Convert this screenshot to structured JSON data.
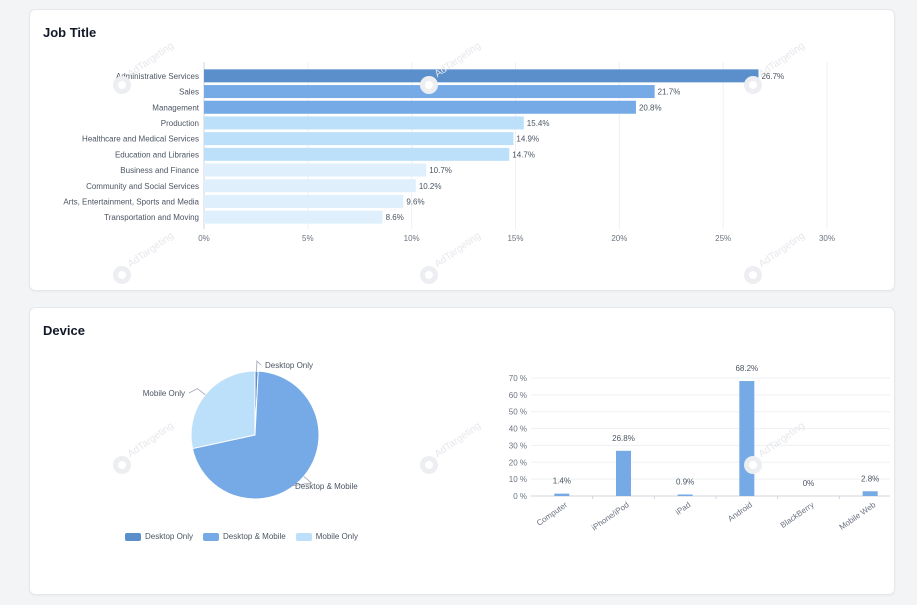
{
  "watermark": "AdTargeting",
  "job_card": {
    "title": "Job Title"
  },
  "device_card": {
    "title": "Device"
  },
  "colors": {
    "dark": "#5b8fcb",
    "mid": "#75aae6",
    "light": "#bde0fa",
    "lighter": "#dff0fc",
    "grid": "#eef0f3",
    "axis": "#6b7280"
  },
  "chart_data": [
    {
      "type": "bar",
      "orientation": "horizontal",
      "categories": [
        "Administrative Services",
        "Sales",
        "Management",
        "Production",
        "Healthcare and Medical Services",
        "Education and Libraries",
        "Business and Finance",
        "Community and Social Services",
        "Arts, Entertainment, Sports and Media",
        "Transportation and Moving"
      ],
      "values": [
        26.7,
        21.7,
        20.8,
        15.4,
        14.9,
        14.7,
        10.7,
        10.2,
        9.6,
        8.6
      ],
      "value_labels": [
        "26.7%",
        "21.7%",
        "20.8%",
        "15.4%",
        "14.9%",
        "14.7%",
        "10.7%",
        "10.2%",
        "9.6%",
        "8.6%"
      ],
      "xlim": [
        0,
        30
      ],
      "xticks": [
        "0%",
        "5%",
        "10%",
        "15%",
        "20%",
        "25%",
        "30%"
      ],
      "grid": true
    },
    {
      "type": "pie",
      "labels": [
        "Desktop Only",
        "Desktop & Mobile",
        "Mobile Only"
      ],
      "values": [
        0.8,
        70.8,
        28.4
      ],
      "colors": [
        "#5b8fcb",
        "#75aae6",
        "#bde0fa"
      ],
      "legend": "bottom"
    },
    {
      "type": "bar",
      "categories": [
        "Computer",
        "iPhone/iPod",
        "iPad",
        "Android",
        "BlackBerry",
        "Mobile Web"
      ],
      "values": [
        1.4,
        26.8,
        0.9,
        68.2,
        0,
        2.8
      ],
      "value_labels": [
        "1.4%",
        "26.8%",
        "0.9%",
        "68.2%",
        "0%",
        "2.8%"
      ],
      "ylim": [
        0,
        70
      ],
      "yticks": [
        "0 %",
        "10 %",
        "20 %",
        "30 %",
        "40 %",
        "50 %",
        "60 %",
        "70 %"
      ],
      "grid": true
    }
  ]
}
